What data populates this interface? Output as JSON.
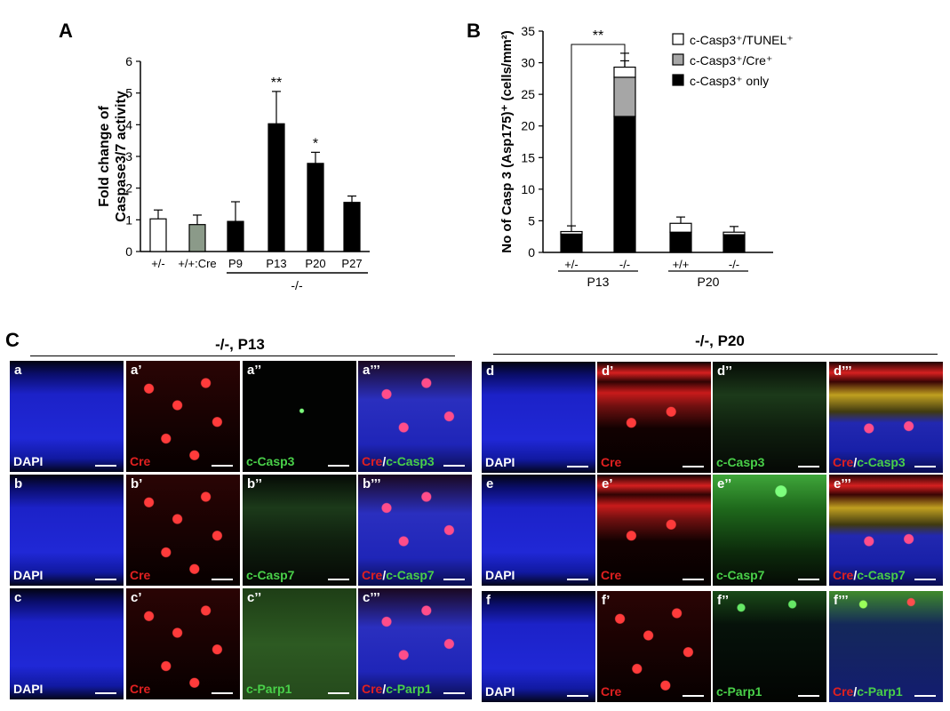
{
  "panelA": {
    "letter": "A",
    "ylabel_line1": "Fold change of",
    "ylabel_line2": "Caspase3/7 activity",
    "group_label": "-/-",
    "chart_data": {
      "type": "bar",
      "categories": [
        "+/-",
        "+/+:Cre",
        "P9",
        "P13",
        "P20",
        "P27"
      ],
      "values": [
        1.03,
        0.85,
        0.95,
        4.03,
        2.78,
        1.55
      ],
      "errors": [
        0.28,
        0.3,
        0.62,
        1.02,
        0.35,
        0.2
      ],
      "significance": [
        "",
        "",
        "",
        "**",
        "*",
        ""
      ],
      "bar_colors": [
        "#ffffff",
        "#8b9a89",
        "#000000",
        "#000000",
        "#000000",
        "#000000"
      ],
      "ylim": [
        0,
        6
      ],
      "yticks": [
        0,
        1,
        2,
        3,
        4,
        5,
        6
      ]
    }
  },
  "panelB": {
    "letter": "B",
    "ylabel": "No of Casp 3 (Asp175)⁺ (cells/mm²)",
    "sig_bracket": "**",
    "group_labels": [
      "P13",
      "P20"
    ],
    "legend": [
      {
        "label": "c-Casp3⁺/TUNEL⁺",
        "color": "#ffffff"
      },
      {
        "label": "c-Casp3⁺/Cre⁺",
        "color": "#a6a6a6"
      },
      {
        "label": "c-Casp3⁺ only",
        "color": "#000000"
      }
    ],
    "chart_data": {
      "type": "bar",
      "stacked": true,
      "categories": [
        "+/-",
        "-/-",
        "+/+",
        "-/-"
      ],
      "series": [
        {
          "name": "c-Casp3⁺ only",
          "color": "#000000",
          "values": [
            2.9,
            21.5,
            3.2,
            2.8
          ],
          "errors": [
            0,
            0.7,
            0,
            0
          ]
        },
        {
          "name": "c-Casp3⁺/Cre⁺",
          "color": "#a6a6a6",
          "values": [
            0,
            6.2,
            0,
            0
          ],
          "errors": [
            0,
            3.8,
            0,
            0
          ]
        },
        {
          "name": "c-Casp3⁺/TUNEL⁺",
          "color": "#ffffff",
          "values": [
            0.4,
            1.6,
            1.4,
            0.4
          ],
          "errors": [
            0.9,
            1.0,
            1.0,
            0.9
          ]
        }
      ],
      "ylim": [
        0,
        35
      ],
      "yticks": [
        0,
        5,
        10,
        15,
        20,
        25,
        30,
        35
      ]
    }
  },
  "panelC": {
    "letter": "C",
    "groups": [
      {
        "title": "-/-, P13"
      },
      {
        "title": "-/-, P20"
      }
    ],
    "tiles": [
      {
        "id": "a",
        "label": "a",
        "channel": "DAPI",
        "type": "dapi"
      },
      {
        "id": "a1",
        "label": "a’",
        "channel": "Cre",
        "type": "cre"
      },
      {
        "id": "a2",
        "label": "a’’",
        "channel": "c-Casp3",
        "type": "green-dark"
      },
      {
        "id": "a3",
        "label": "a’’’",
        "channel_red": "Cre",
        "sep": "/",
        "channel_green": "c-Casp3",
        "type": "merge"
      },
      {
        "id": "b",
        "label": "b",
        "channel": "DAPI",
        "type": "dapi"
      },
      {
        "id": "b1",
        "label": "b’",
        "channel": "Cre",
        "type": "cre"
      },
      {
        "id": "b2",
        "label": "b’’",
        "channel": "c-Casp7",
        "type": "green-dim"
      },
      {
        "id": "b3",
        "label": "b’’’",
        "channel_red": "Cre",
        "sep": "/",
        "channel_green": "c-Casp7",
        "type": "merge"
      },
      {
        "id": "c",
        "label": "c",
        "channel": "DAPI",
        "type": "dapi"
      },
      {
        "id": "c1",
        "label": "c’",
        "channel": "Cre",
        "type": "cre"
      },
      {
        "id": "c2",
        "label": "c’’",
        "channel": "c-Parp1",
        "type": "green-mid"
      },
      {
        "id": "c3",
        "label": "c’’’",
        "channel_red": "Cre",
        "sep": "/",
        "channel_green": "c-Parp1",
        "type": "merge"
      },
      {
        "id": "d",
        "label": "d",
        "channel": "DAPI",
        "type": "dapi"
      },
      {
        "id": "d1",
        "label": "d’",
        "channel": "Cre",
        "type": "cre-band"
      },
      {
        "id": "d2",
        "label": "d’’",
        "channel": "c-Casp3",
        "type": "green-dim"
      },
      {
        "id": "d3",
        "label": "d’’’",
        "channel_red": "Cre",
        "sep": "/",
        "channel_green": "c-Casp3",
        "type": "merge-band"
      },
      {
        "id": "e",
        "label": "e",
        "channel": "DAPI",
        "type": "dapi"
      },
      {
        "id": "e1",
        "label": "e’",
        "channel": "Cre",
        "type": "cre-band"
      },
      {
        "id": "e2",
        "label": "e’’",
        "channel": "c-Casp7",
        "type": "green-bright"
      },
      {
        "id": "e3",
        "label": "e’’’",
        "channel_red": "Cre",
        "sep": "/",
        "channel_green": "c-Casp7",
        "type": "merge-band"
      },
      {
        "id": "f",
        "label": "f",
        "channel": "DAPI",
        "type": "dapi"
      },
      {
        "id": "f1",
        "label": "f’",
        "channel": "Cre",
        "type": "cre"
      },
      {
        "id": "f2",
        "label": "f’’",
        "channel": "c-Parp1",
        "type": "green-top"
      },
      {
        "id": "f3",
        "label": "f’’’",
        "channel_red": "Cre",
        "sep": "/",
        "channel_green": "c-Parp1",
        "type": "merge-top"
      }
    ]
  }
}
